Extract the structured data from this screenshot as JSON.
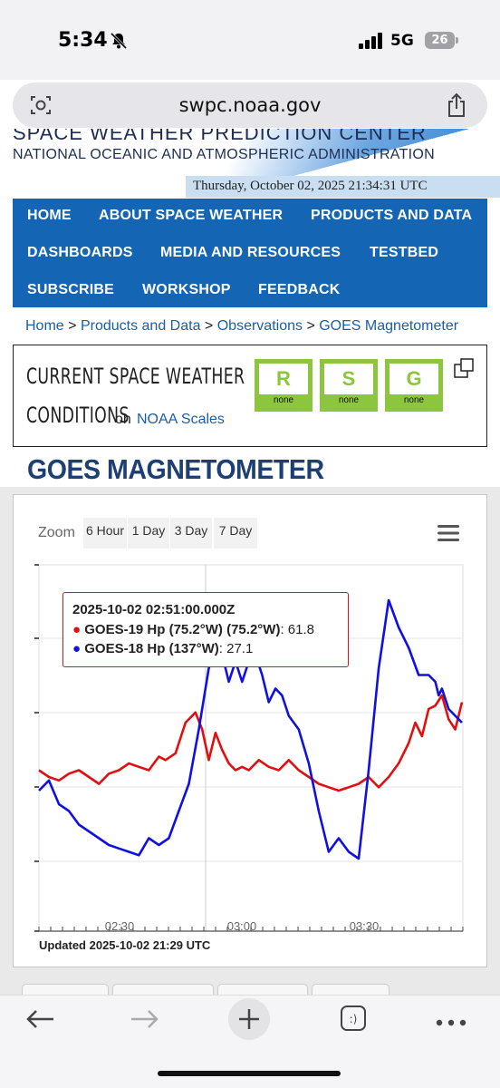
{
  "status_bar": {
    "time": "5:34",
    "network": "5G",
    "battery": "26"
  },
  "browser": {
    "url": "swpc.noaa.gov"
  },
  "header": {
    "title_partial": "SPACE WEATHER PREDICTION CENTER",
    "subtitle": "NATIONAL OCEANIC AND ATMOSPHERIC ADMINISTRATION",
    "datetime": "Thursday, October 02, 2025 21:34:31 UTC"
  },
  "nav": {
    "items": [
      "HOME",
      "ABOUT SPACE WEATHER",
      "PRODUCTS AND DATA",
      "DASHBOARDS",
      "MEDIA AND RESOURCES",
      "TESTBED",
      "SUBSCRIBE",
      "WORKSHOP",
      "FEEDBACK"
    ]
  },
  "breadcrumb": {
    "items": [
      "Home",
      "Products and Data",
      "Observations",
      "GOES Magnetometer"
    ],
    "separator": ">"
  },
  "conditions": {
    "line1": "CURRENT SPACE WEATHER",
    "line2": "CONDITIONS",
    "on": "on",
    "link": "NOAA Scales",
    "scales": [
      {
        "letter": "R",
        "status": "none"
      },
      {
        "letter": "S",
        "status": "none"
      },
      {
        "letter": "G",
        "status": "none"
      }
    ],
    "scale_color": "#8cc63f"
  },
  "page_title": "GOES MAGNETOMETER",
  "chart_controls": {
    "zoom_label": "Zoom",
    "buttons": [
      "6 Hour",
      "1 Day",
      "3 Day",
      "7 Day"
    ]
  },
  "tooltip": {
    "time": "2025-10-02 02:51:00.000Z",
    "rows": [
      {
        "label": "GOES-19 Hp (75.2°W) (75.2°W)",
        "value": "61.8",
        "color": "#e01010"
      },
      {
        "label": "GOES-18 Hp (137°W)",
        "value": "27.1",
        "color": "#1010e0"
      }
    ]
  },
  "updated": "Updated 2025-10-02 21:29 UTC",
  "chart_data": {
    "type": "line",
    "x_tick_labels": [
      "02:30",
      "03:00",
      "03:30"
    ],
    "x_range_minutes": [
      2.0,
      3.75
    ],
    "series": [
      {
        "name": "GOES-19 Hp (75.2°W) (75.2°W)",
        "color": "#e01010",
        "x_minutes": [
          0,
          3,
          6,
          9,
          12,
          15,
          18,
          21,
          24,
          27,
          30,
          33,
          36,
          38,
          41,
          44,
          47,
          49,
          51,
          53,
          55,
          57,
          59,
          61,
          63,
          66,
          69,
          72,
          75,
          78,
          81,
          84,
          87,
          90,
          93,
          96,
          99,
          102,
          105,
          108,
          111,
          113,
          115,
          117,
          119,
          121,
          123,
          125,
          127
        ],
        "values": [
          0.3,
          0.2,
          0.15,
          0.25,
          0.3,
          0.2,
          0.1,
          0.25,
          0.3,
          0.4,
          0.35,
          0.3,
          0.5,
          0.45,
          0.55,
          1.0,
          1.15,
          0.9,
          0.45,
          0.85,
          0.6,
          0.4,
          0.3,
          0.35,
          0.3,
          0.45,
          0.35,
          0.3,
          0.45,
          0.3,
          0.2,
          0.1,
          0.05,
          0.0,
          0.05,
          0.1,
          0.2,
          0.05,
          0.2,
          0.4,
          0.7,
          1.0,
          0.8,
          1.2,
          1.25,
          1.4,
          1.05,
          0.9,
          1.3
        ]
      },
      {
        "name": "GOES-18 Hp (137°W)",
        "color": "#1010e0",
        "x_minutes": [
          0,
          3,
          6,
          9,
          12,
          15,
          18,
          21,
          24,
          27,
          30,
          33,
          36,
          39,
          42,
          45,
          48,
          51,
          54,
          57,
          59,
          61,
          63,
          65,
          67,
          69,
          71,
          73,
          75,
          78,
          81,
          84,
          87,
          90,
          93,
          96,
          99,
          102,
          105,
          108,
          111,
          114,
          117,
          119,
          120,
          121,
          123,
          125,
          127
        ],
        "values": [
          0.0,
          0.15,
          -0.2,
          -0.3,
          -0.5,
          -0.6,
          -0.7,
          -0.8,
          -0.85,
          -0.9,
          -0.95,
          -0.7,
          -0.8,
          -0.7,
          -0.3,
          0.1,
          0.9,
          1.8,
          2.2,
          1.6,
          1.9,
          1.6,
          1.9,
          2.0,
          1.7,
          1.3,
          1.5,
          1.4,
          1.1,
          0.9,
          0.4,
          -0.3,
          -0.9,
          -0.7,
          -0.9,
          -1.0,
          0.3,
          1.8,
          2.8,
          2.4,
          2.1,
          1.7,
          1.7,
          1.6,
          1.4,
          1.5,
          1.2,
          1.1,
          1.0
        ]
      }
    ],
    "grid": true
  }
}
